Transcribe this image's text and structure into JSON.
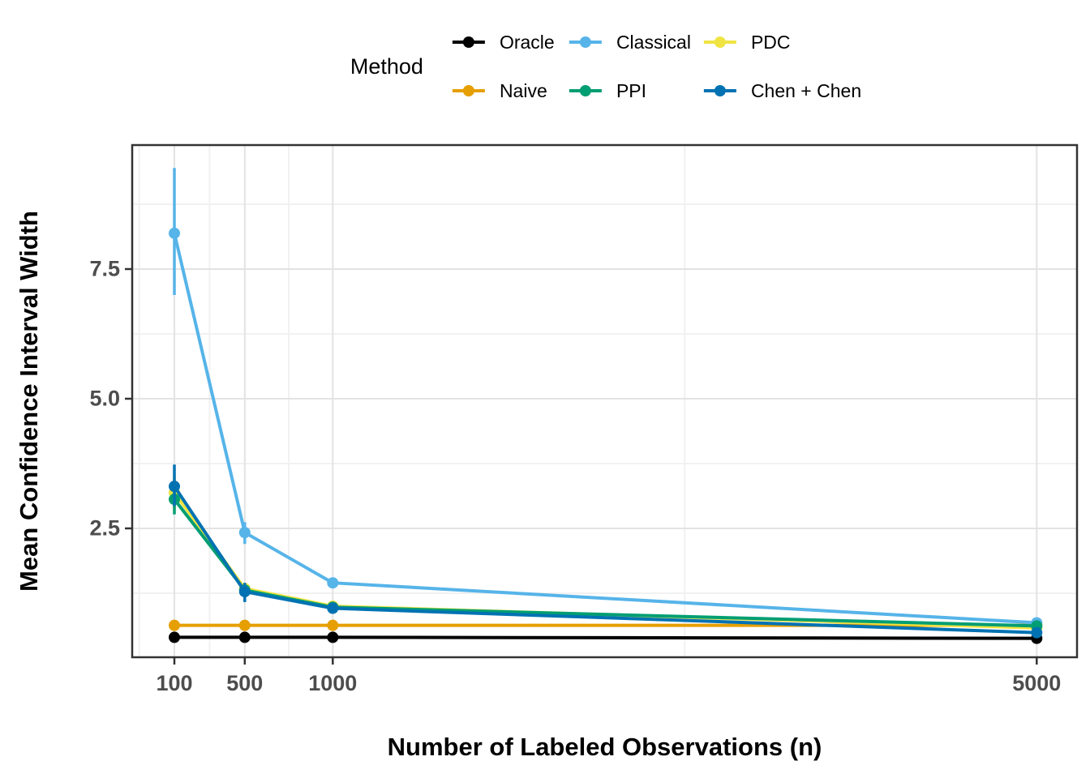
{
  "page": {
    "background": "#ffffff"
  },
  "legend": {
    "title": "Method",
    "items": [
      {
        "label": "Oracle",
        "color": "#000000"
      },
      {
        "label": "Classical",
        "color": "#56B4E9"
      },
      {
        "label": "PDC",
        "color": "#F0E442"
      },
      {
        "label": "Naive",
        "color": "#E69F00"
      },
      {
        "label": "PPI",
        "color": "#009E73"
      },
      {
        "label": "Chen + Chen",
        "color": "#0072B2"
      }
    ]
  },
  "chart_data": {
    "type": "line",
    "title": "",
    "xlabel": "Number of Labeled Observations (n)",
    "ylabel": "Mean Confidence Interval Width",
    "legend_title": "Method",
    "legend_position": "top-center",
    "grid": "on",
    "x_axis_type": "linear",
    "x": [
      100,
      500,
      1000,
      5000
    ],
    "x_tick_labels": [
      "100",
      "500",
      "1000",
      "5000"
    ],
    "y_ticks": [
      2.5,
      5.0,
      7.5
    ],
    "y_tick_labels": [
      "2.5",
      "5.0",
      "7.5"
    ],
    "x_minor_gridlines": [
      -100,
      300,
      750,
      3000
    ],
    "y_minor_gridlines": [
      1.25,
      3.75,
      6.25,
      8.75
    ],
    "xlim": [
      -145,
      5245
    ],
    "ylim": [
      0,
      9.9
    ],
    "series": [
      {
        "name": "Oracle",
        "color": "#000000",
        "values": [
          0.4,
          0.4,
          0.4,
          0.38
        ],
        "ci_low": [
          null,
          null,
          null,
          null
        ],
        "ci_high": [
          null,
          null,
          null,
          null
        ]
      },
      {
        "name": "Classical",
        "color": "#56B4E9",
        "values": [
          8.19,
          2.42,
          1.45,
          0.68
        ],
        "ci_low": [
          7.0,
          2.2,
          null,
          null
        ],
        "ci_high": [
          9.45,
          2.62,
          null,
          null
        ]
      },
      {
        "name": "PDC",
        "color": "#F0E442",
        "values": [
          3.19,
          1.34,
          1.0,
          0.58
        ],
        "ci_low": [
          2.85,
          null,
          null,
          null
        ],
        "ci_high": [
          3.52,
          null,
          null,
          null
        ]
      },
      {
        "name": "Naive",
        "color": "#E69F00",
        "values": [
          0.63,
          0.63,
          0.63,
          0.63
        ],
        "ci_low": [
          null,
          null,
          null,
          null
        ],
        "ci_high": [
          null,
          null,
          null,
          null
        ]
      },
      {
        "name": "PPI",
        "color": "#009E73",
        "values": [
          3.06,
          1.31,
          0.98,
          0.62
        ],
        "ci_low": [
          2.77,
          null,
          null,
          null
        ],
        "ci_high": [
          3.42,
          null,
          null,
          null
        ]
      },
      {
        "name": "Chen + Chen",
        "color": "#0072B2",
        "values": [
          3.31,
          1.28,
          0.96,
          0.49
        ],
        "ci_low": [
          2.93,
          1.08,
          null,
          null
        ],
        "ci_high": [
          3.73,
          1.45,
          null,
          null
        ]
      }
    ]
  }
}
